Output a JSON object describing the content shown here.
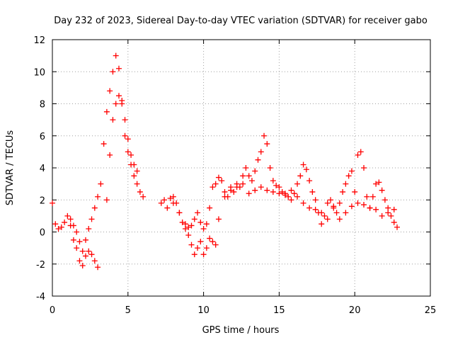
{
  "chart_data": {
    "type": "scatter",
    "title": "Day 232 of 2023, Sidereal Day-to-day VTEC variation (SDTVAR) for receiver gabo",
    "xlabel": "GPS time / hours",
    "ylabel": "SDTVAR / TECUs",
    "xlim": [
      0,
      25
    ],
    "ylim": [
      -4,
      12
    ],
    "xticks": [
      "0",
      "5",
      "10",
      "15",
      "20",
      "25"
    ],
    "yticks": [
      "-4",
      "-2",
      "0",
      "2",
      "4",
      "6",
      "8",
      "10",
      "12"
    ],
    "grid": true,
    "marker": "+",
    "colors": {
      "series": "#ff0000",
      "grid": "#a0a0a0",
      "axis": "#000000"
    },
    "series": [
      {
        "name": "SDTVAR",
        "x": [
          0.0,
          0.2,
          0.4,
          0.6,
          0.8,
          1.0,
          1.2,
          1.4,
          1.6,
          1.8,
          2.0,
          2.2,
          2.4,
          2.6,
          2.8,
          3.0,
          3.2,
          3.4,
          3.6,
          3.8,
          4.0,
          4.2,
          4.4,
          4.6,
          4.8,
          5.0,
          5.2,
          5.4,
          5.6,
          5.8,
          6.0,
          7.2,
          7.4,
          7.6,
          7.8,
          8.0,
          8.2,
          8.4,
          8.6,
          8.8,
          9.0,
          9.2,
          9.4,
          9.6,
          9.8,
          10.0,
          10.2,
          10.4,
          10.6,
          10.8,
          11.0,
          11.2,
          11.4,
          11.6,
          11.8,
          12.0,
          12.2,
          12.4,
          12.6,
          12.8,
          13.0,
          13.2,
          13.4,
          13.6,
          13.8,
          14.0,
          14.2,
          14.4,
          14.6,
          14.8,
          15.0,
          15.2,
          15.4,
          15.6,
          15.8,
          16.0,
          16.2,
          16.4,
          16.6,
          16.8,
          17.0,
          17.2,
          17.4,
          17.6,
          17.8,
          18.0,
          18.2,
          18.4,
          18.6,
          18.8,
          19.0,
          19.2,
          19.4,
          19.6,
          19.8,
          20.0,
          20.2,
          20.4,
          20.6,
          20.8,
          21.0,
          21.2,
          21.4,
          21.6,
          21.8,
          22.0,
          22.2,
          22.4,
          22.6,
          22.8,
          1.2,
          1.4,
          1.6,
          1.8,
          2.0,
          2.2,
          2.4,
          2.6,
          2.8,
          3.0,
          3.6,
          3.8,
          4.0,
          4.2,
          4.4,
          4.6,
          4.8,
          5.0,
          5.2,
          5.4,
          5.6,
          8.0,
          8.4,
          8.8,
          9.0,
          9.2,
          9.4,
          9.6,
          9.8,
          10.0,
          10.2,
          10.4,
          10.6,
          10.8,
          11.0,
          11.4,
          11.8,
          12.2,
          12.6,
          13.0,
          13.4,
          13.8,
          14.2,
          14.6,
          15.0,
          15.4,
          15.8,
          16.2,
          16.6,
          17.0,
          17.4,
          17.8,
          18.2,
          18.6,
          19.0,
          19.4,
          19.8,
          20.2,
          20.6,
          21.0,
          21.4,
          21.8,
          22.2,
          22.6
        ],
        "y": [
          1.8,
          0.5,
          0.2,
          0.3,
          0.6,
          1.0,
          0.4,
          -0.5,
          -1.0,
          -1.8,
          -2.1,
          -1.5,
          -1.2,
          -1.4,
          -1.8,
          -2.2,
          3.0,
          5.5,
          7.5,
          8.8,
          10.0,
          11.0,
          10.2,
          8.0,
          6.0,
          5.0,
          4.2,
          3.5,
          3.0,
          2.5,
          2.2,
          1.8,
          2.0,
          1.5,
          2.1,
          2.2,
          1.8,
          1.2,
          0.6,
          0.5,
          0.3,
          0.4,
          0.8,
          1.2,
          0.6,
          0.2,
          0.5,
          1.5,
          2.8,
          3.0,
          3.4,
          3.2,
          2.5,
          2.2,
          2.8,
          2.5,
          3.0,
          2.8,
          3.5,
          4.0,
          3.5,
          3.2,
          3.8,
          4.5,
          5.0,
          6.0,
          5.5,
          4.0,
          3.2,
          2.9,
          2.8,
          2.5,
          2.4,
          2.2,
          2.0,
          2.4,
          3.0,
          3.5,
          4.2,
          3.9,
          3.2,
          2.5,
          2.0,
          1.2,
          0.5,
          1.0,
          1.8,
          2.0,
          1.6,
          1.2,
          1.8,
          2.5,
          3.0,
          3.5,
          3.8,
          2.5,
          4.8,
          5.0,
          4.0,
          2.2,
          1.5,
          2.2,
          3.0,
          3.1,
          2.6,
          2.0,
          1.5,
          1.0,
          0.6,
          0.3,
          0.8,
          0.4,
          0.0,
          -0.6,
          -1.2,
          -0.5,
          0.2,
          0.8,
          1.5,
          2.2,
          2.0,
          4.8,
          7.0,
          8.0,
          8.5,
          8.2,
          7.0,
          5.8,
          4.8,
          4.2,
          3.8,
          1.8,
          1.2,
          0.2,
          -0.2,
          -0.8,
          -1.4,
          -1.0,
          -0.6,
          -1.4,
          -1.0,
          -0.4,
          -0.6,
          -0.8,
          0.8,
          2.2,
          2.6,
          2.8,
          3.0,
          2.4,
          2.6,
          2.8,
          2.6,
          2.5,
          2.4,
          2.3,
          2.6,
          2.2,
          1.8,
          1.5,
          1.4,
          1.2,
          0.8,
          1.5,
          0.8,
          1.2,
          1.6,
          1.8,
          1.7,
          1.5,
          1.4,
          1.0,
          1.2,
          1.4
        ]
      }
    ]
  }
}
